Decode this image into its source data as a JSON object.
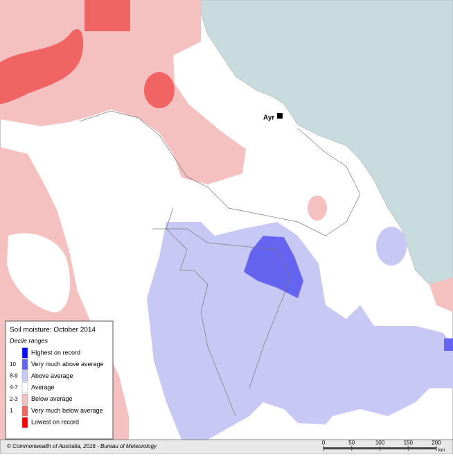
{
  "map": {
    "place": "Ayr"
  },
  "legend": {
    "title": "Soil moisture: October 2014",
    "subtitle": "Decile ranges",
    "items": [
      {
        "label": "Highest on record",
        "color": "#0a0aff"
      },
      {
        "code": "10",
        "label": "Very much above average",
        "color": "#6464f0"
      },
      {
        "code": "8-9",
        "label": "Above average",
        "color": "#c8c8f5"
      },
      {
        "code": "4-7",
        "label": "Average",
        "color": "#ffffff"
      },
      {
        "code": "2-3",
        "label": "Below average",
        "color": "#f5c0c0"
      },
      {
        "code": "1",
        "label": "Very much below average",
        "color": "#f06464"
      },
      {
        "label": "Lowest on record",
        "color": "#ff0000"
      }
    ]
  },
  "footer": {
    "credit": "© Commonwealth of Australia, 2016 - Bureau of Meteorology"
  },
  "scale": {
    "ticks": [
      0,
      50,
      100,
      150,
      200
    ],
    "unit": "km"
  }
}
